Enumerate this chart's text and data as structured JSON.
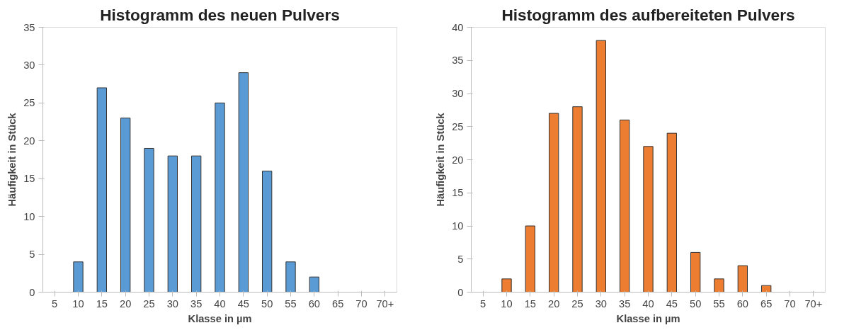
{
  "chart_data": [
    {
      "type": "bar",
      "title": "Histogramm des neuen Pulvers",
      "xlabel": "Klasse in µm",
      "ylabel": "Häufigkeit in Stück",
      "categories": [
        "5",
        "10",
        "15",
        "20",
        "25",
        "30",
        "35",
        "40",
        "45",
        "50",
        "55",
        "60",
        "65",
        "70",
        "70+"
      ],
      "values": [
        0,
        4,
        27,
        23,
        19,
        18,
        18,
        25,
        29,
        16,
        4,
        2,
        0,
        0,
        0
      ],
      "color": "#5b9bd5",
      "ylim": [
        0,
        35
      ],
      "yticks": [
        0,
        5,
        10,
        15,
        20,
        25,
        30,
        35
      ],
      "grid": false
    },
    {
      "type": "bar",
      "title": "Histogramm des aufbereiteten Pulvers",
      "xlabel": "Klasse in µm",
      "ylabel": "Häufigkeit in Stück",
      "categories": [
        "5",
        "10",
        "15",
        "20",
        "25",
        "30",
        "35",
        "40",
        "45",
        "50",
        "55",
        "60",
        "65",
        "70",
        "70+"
      ],
      "values": [
        0,
        2,
        10,
        27,
        28,
        38,
        26,
        22,
        24,
        6,
        2,
        4,
        1,
        0,
        0
      ],
      "color": "#ed7d31",
      "ylim": [
        0,
        40
      ],
      "yticks": [
        0,
        5,
        10,
        15,
        20,
        25,
        30,
        35,
        40
      ],
      "grid": false
    }
  ]
}
